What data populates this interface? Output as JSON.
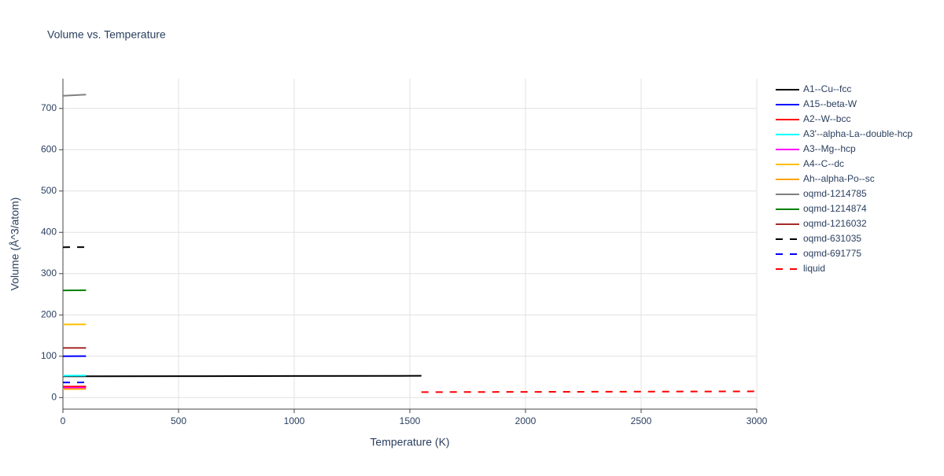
{
  "chart_data": {
    "type": "line",
    "title": "Volume vs. Temperature",
    "x_label": "Temperature (K)",
    "y_label": "Volume (Å^3/atom)",
    "xlim": [
      0,
      3000
    ],
    "xticks": [
      0,
      500,
      1000,
      1500,
      2000,
      2500,
      3000
    ],
    "ylim": [
      -28,
      772
    ],
    "yticks": [
      0,
      100,
      200,
      300,
      400,
      500,
      600,
      700
    ],
    "grid": true,
    "legend": "right",
    "series": [
      {
        "name": "A1--Cu--fcc",
        "color": "#000000",
        "dash": "solid",
        "x": [
          0,
          500,
          1000,
          1550
        ],
        "values": [
          51.5,
          51.8,
          52.2,
          52.6
        ]
      },
      {
        "name": "A15--beta-W",
        "color": "#0000ff",
        "dash": "solid",
        "x": [
          0,
          100
        ],
        "values": [
          100,
          100.3
        ]
      },
      {
        "name": "A2--W--bcc",
        "color": "#ff0000",
        "dash": "solid",
        "x": [
          0,
          100
        ],
        "values": [
          26.5,
          26.7
        ]
      },
      {
        "name": "A3'--alpha-La--double-hcp",
        "color": "#00ffff",
        "dash": "solid",
        "x": [
          0,
          100
        ],
        "values": [
          53,
          53.2
        ]
      },
      {
        "name": "A3--Mg--hcp",
        "color": "#ff00ff",
        "dash": "solid",
        "x": [
          0,
          100
        ],
        "values": [
          23.5,
          23.7
        ]
      },
      {
        "name": "A4--C--dc",
        "color": "#ffbf00",
        "dash": "solid",
        "x": [
          0,
          100
        ],
        "values": [
          177,
          177.2
        ]
      },
      {
        "name": "Ah--alpha-Po--sc",
        "color": "#ffa500",
        "dash": "solid",
        "x": [
          0,
          100
        ],
        "values": [
          20.5,
          20.7
        ]
      },
      {
        "name": "oqmd-1214785",
        "color": "#808080",
        "dash": "solid",
        "x": [
          0,
          100
        ],
        "values": [
          730.5,
          733.5
        ]
      },
      {
        "name": "oqmd-1214874",
        "color": "#008000",
        "dash": "solid",
        "x": [
          0,
          100
        ],
        "values": [
          259.5,
          259.8
        ]
      },
      {
        "name": "oqmd-1216032",
        "color": "#a52a2a",
        "dash": "solid",
        "x": [
          0,
          100
        ],
        "values": [
          120,
          120.2
        ]
      },
      {
        "name": "oqmd-631035",
        "color": "#000000",
        "dash": "dash",
        "x": [
          0,
          100
        ],
        "values": [
          364,
          364.2
        ]
      },
      {
        "name": "oqmd-691775",
        "color": "#0000ff",
        "dash": "dash",
        "x": [
          0,
          100
        ],
        "values": [
          36.5,
          36.7
        ]
      },
      {
        "name": "liquid",
        "color": "#ff0000",
        "dash": "dash",
        "x": [
          1550,
          2000,
          2500,
          3000
        ],
        "values": [
          13.2,
          13.7,
          14.3,
          15
        ]
      }
    ]
  }
}
